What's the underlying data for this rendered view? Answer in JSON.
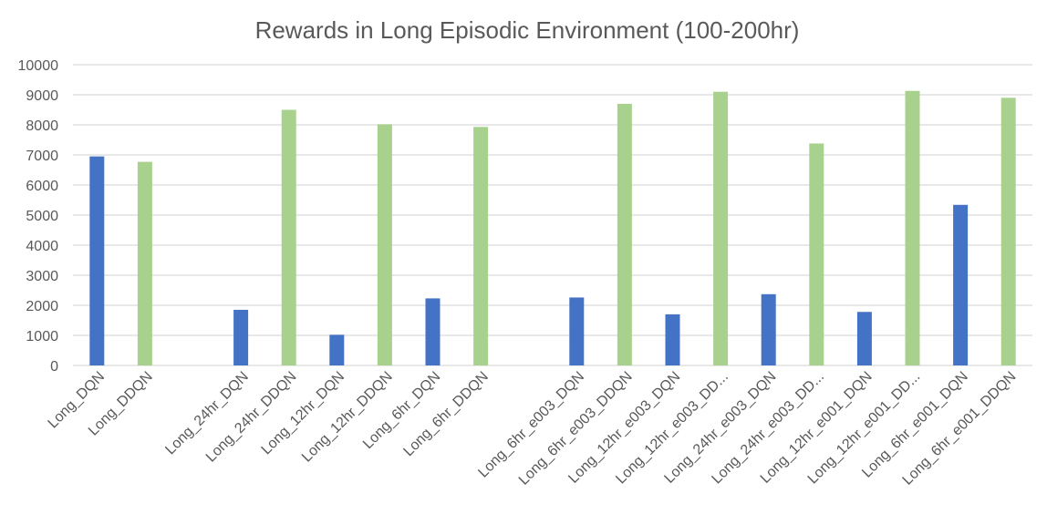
{
  "chart_data": {
    "type": "bar",
    "title": "Rewards in Long Episodic Environment (100-200hr)",
    "xlabel": "",
    "ylabel": "",
    "ylim": [
      0,
      10000
    ],
    "yticks": [
      "0",
      "1000",
      "2000",
      "3000",
      "4000",
      "5000",
      "6000",
      "7000",
      "8000",
      "9000",
      "10000"
    ],
    "grid": true,
    "legend": "none",
    "colors": {
      "DQN": "#4472c4",
      "DDQN": "#a9d18e"
    },
    "categories": [
      "Long_DQN",
      "Long_DDQN",
      "",
      "Long_24hr_DQN",
      "Long_24hr_DDQN",
      "Long_12hr_DQN",
      "Long_12hr_DDQN",
      "Long_6hr_DQN",
      "Long_6hr_DDQN",
      "",
      "Long_6hr_e003_DQN",
      "Long_6hr_e003_DDQN",
      "Long_12hr_e003_DQN",
      "Long_12hr_e003_DD...",
      "Long_24hr_e003_DQN",
      "Long_24hr_e003_DD...",
      "Long_12hr_e001_DQN",
      "Long_12hr_e001_DD...",
      "Long_6hr_e001_DQN",
      "Long_6hr_e001_DDQN"
    ],
    "values": [
      6950,
      6770,
      null,
      1850,
      8500,
      1020,
      8020,
      2230,
      7930,
      null,
      2260,
      8700,
      1700,
      9100,
      2370,
      7380,
      1780,
      9130,
      5340,
      8900
    ],
    "bar_series": [
      "DQN",
      "DDQN",
      null,
      "DQN",
      "DDQN",
      "DQN",
      "DDQN",
      "DQN",
      "DDQN",
      null,
      "DQN",
      "DDQN",
      "DQN",
      "DDQN",
      "DQN",
      "DDQN",
      "DQN",
      "DDQN",
      "DQN",
      "DDQN"
    ]
  }
}
